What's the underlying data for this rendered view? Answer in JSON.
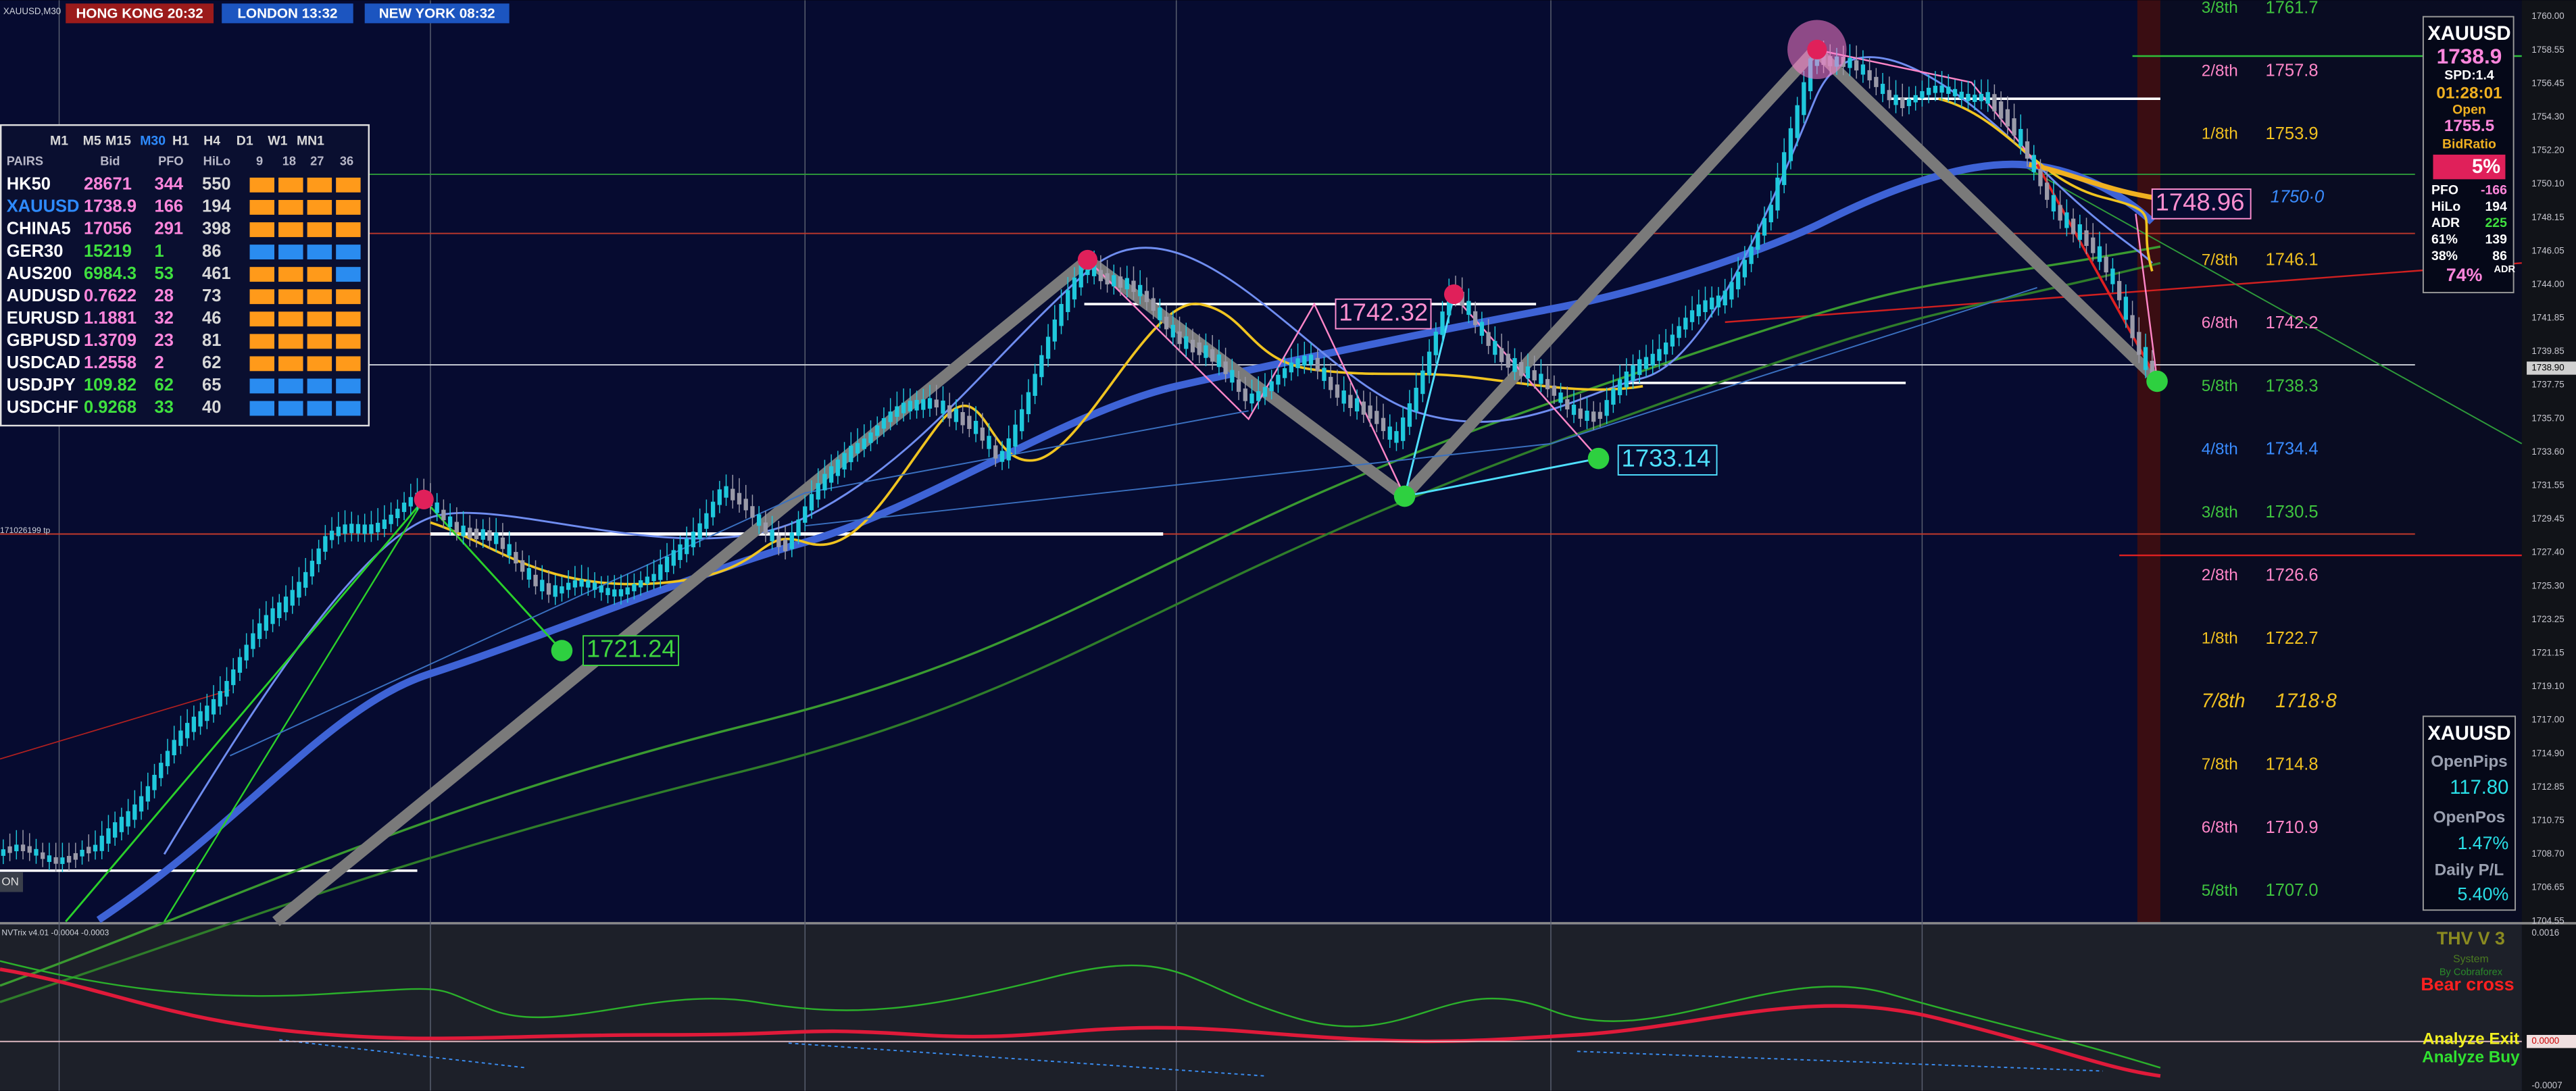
{
  "symbol": "XAUUSD,M30",
  "clocks": [
    {
      "text": "HONG KONG 20:32",
      "color": "#9b1b1b"
    },
    {
      "text": "LONDON 13:32",
      "color": "#1c55c0"
    },
    {
      "text": "NEW YORK 08:32",
      "color": "#1c55c0"
    }
  ],
  "pairs_panel": {
    "timeframes": [
      "M1",
      "M5",
      "M15",
      "M30",
      "H1",
      "H4",
      "D1",
      "W1",
      "MN1"
    ],
    "active_timeframe": 3,
    "headers": [
      "PAIRS",
      "Bid",
      "PFO",
      "HiLo",
      "9",
      "18",
      "27",
      "36"
    ],
    "rows": [
      {
        "pair": "HK50",
        "bid": "28671",
        "pfo": "344",
        "hilo": "550",
        "color": "#ff86dc",
        "bars": [
          "#ff9a1a",
          "#ff9a1a",
          "#ff9a1a",
          "#ff9a1a"
        ]
      },
      {
        "pair": "XAUUSD",
        "bid": "1738.9",
        "pfo": "166",
        "hilo": "194",
        "color": "#ff86dc",
        "bars": [
          "#ff9a1a",
          "#ff9a1a",
          "#ff9a1a",
          "#ff9a1a"
        ]
      },
      {
        "pair": "CHINA5",
        "bid": "17056",
        "pfo": "291",
        "hilo": "398",
        "color": "#ff86dc",
        "bars": [
          "#ff9a1a",
          "#ff9a1a",
          "#ff9a1a",
          "#ff9a1a"
        ]
      },
      {
        "pair": "GER30",
        "bid": "15219",
        "pfo": "1",
        "hilo": "86",
        "color": "#3fe03f",
        "bars": [
          "#2a8cf0",
          "#2a8cf0",
          "#2a8cf0",
          "#2a8cf0"
        ]
      },
      {
        "pair": "AUS200",
        "bid": "6984.3",
        "pfo": "53",
        "hilo": "461",
        "color": "#3fe03f",
        "bars": [
          "#ff9a1a",
          "#ff9a1a",
          "#ff9a1a",
          "#2a8cf0"
        ]
      },
      {
        "pair": "AUDUSD",
        "bid": "0.7622",
        "pfo": "28",
        "hilo": "73",
        "color": "#ff86dc",
        "bars": [
          "#ff9a1a",
          "#ff9a1a",
          "#ff9a1a",
          "#ff9a1a"
        ]
      },
      {
        "pair": "EURUSD",
        "bid": "1.1881",
        "pfo": "32",
        "hilo": "46",
        "color": "#ff86dc",
        "bars": [
          "#ff9a1a",
          "#ff9a1a",
          "#ff9a1a",
          "#ff9a1a"
        ]
      },
      {
        "pair": "GBPUSD",
        "bid": "1.3709",
        "pfo": "23",
        "hilo": "81",
        "color": "#ff86dc",
        "bars": [
          "#ff9a1a",
          "#ff9a1a",
          "#ff9a1a",
          "#ff9a1a"
        ]
      },
      {
        "pair": "USDCAD",
        "bid": "1.2558",
        "pfo": "2",
        "hilo": "62",
        "color": "#ff86dc",
        "bars": [
          "#ff9a1a",
          "#ff9a1a",
          "#ff9a1a",
          "#ff9a1a"
        ]
      },
      {
        "pair": "USDJPY",
        "bid": "109.82",
        "pfo": "62",
        "hilo": "65",
        "color": "#3fe03f",
        "bars": [
          "#2a8cf0",
          "#2a8cf0",
          "#2a8cf0",
          "#2a8cf0"
        ]
      },
      {
        "pair": "USDCHF",
        "bid": "0.9268",
        "pfo": "33",
        "hilo": "40",
        "color": "#3fe03f",
        "bars": [
          "#2a8cf0",
          "#2a8cf0",
          "#2a8cf0",
          "#2a8cf0"
        ]
      }
    ]
  },
  "murrey_levels": [
    {
      "label": "3/8th",
      "price": "1761.7",
      "color": "#3fc43f"
    },
    {
      "label": "2/8th",
      "price": "1757.8",
      "color": "#ff86c8"
    },
    {
      "label": "1/8th",
      "price": "1753.9",
      "color": "#f0c020"
    },
    {
      "price": "1750·0",
      "color": "#3a8cff"
    },
    {
      "label": "7/8th",
      "price": "1746.1",
      "color": "#f0c020"
    },
    {
      "label": "6/8th",
      "price": "1742.2",
      "color": "#ff86c8"
    },
    {
      "label": "5/8th",
      "price": "1738.3",
      "color": "#3fc43f"
    },
    {
      "label": "4/8th",
      "price": "1734.4",
      "color": "#3a8cff"
    },
    {
      "label": "3/8th",
      "price": "1730.5",
      "color": "#3fc43f"
    },
    {
      "label": "2/8th",
      "price": "1726.6",
      "color": "#ff86c8"
    },
    {
      "label": "1/8th",
      "price": "1722.7",
      "color": "#f0c020"
    },
    {
      "label": "7/8th",
      "price": "1718·8",
      "color": "#f0c020"
    },
    {
      "label": "7/8th",
      "price": "1714.8",
      "color": "#f0c020"
    },
    {
      "label": "6/8th",
      "price": "1710.9",
      "color": "#ff86c8"
    },
    {
      "label": "5/8th",
      "price": "1707.0",
      "color": "#3fc43f"
    }
  ],
  "price_axis": [
    "1760.00",
    "1758.55",
    "1756.45",
    "1754.30",
    "1752.20",
    "1750.10",
    "1748.15",
    "1746.05",
    "1744.00",
    "1741.85",
    "1739.85",
    "1737.75",
    "1735.70",
    "1733.60",
    "1731.55",
    "1729.45",
    "1727.40",
    "1725.30",
    "1723.25",
    "1721.15",
    "1719.10",
    "1717.00",
    "1714.90",
    "1712.85",
    "1710.75",
    "1708.70",
    "1706.65",
    "1704.55"
  ],
  "current_price": "1738.90",
  "indicator_axis": [
    "0.0016",
    "0.0000",
    "-0.0007"
  ],
  "annotations": [
    {
      "text": "1721.24",
      "color": "#3fd43f"
    },
    {
      "text": "1742.32",
      "color": "#ff8fd0"
    },
    {
      "text": "1733.14",
      "color": "#4fe0ff"
    },
    {
      "text": "1748.96",
      "color": "#ff8fd0"
    }
  ],
  "tp_label": "171026199 tp",
  "left_tag": "ON",
  "right_panel": {
    "symbol": "XAUUSD",
    "price": "1738.9",
    "spread": "SPD:1.4",
    "timer": "01:28:01",
    "open_label": "Open",
    "open": "1755.5",
    "bid_ratio_label": "BidRatio",
    "bid_ratio": "5%",
    "stats": [
      [
        "PFO",
        "-166"
      ],
      [
        "HiLo",
        "194"
      ],
      [
        "ADR",
        "225"
      ],
      [
        "61%",
        "139"
      ],
      [
        "38%",
        "86"
      ]
    ],
    "adr_pct": "74%",
    "adr_label": "ADR"
  },
  "position_panel": {
    "symbol": "XAUUSD",
    "open_pips_label": "OpenPips",
    "open_pips": "117.80",
    "open_pos_label": "OpenPos",
    "open_pos": "1.47%",
    "daily_label": "Daily P/L",
    "daily": "5.40%"
  },
  "indicator": {
    "label": "NVTrix v4.01 -0.0004 -0.0003",
    "title": "THV V 3",
    "system": "System",
    "author": "By Cobraforex",
    "signal": "Bear cross",
    "exit": "Analyze Exit",
    "buy": "Analyze Buy"
  }
}
